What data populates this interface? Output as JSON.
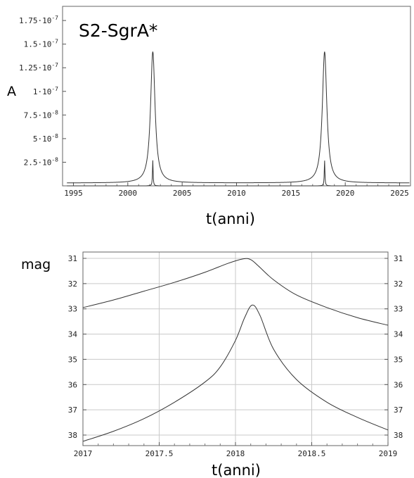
{
  "chart_data": [
    {
      "type": "line",
      "title": "S2-SgrA*",
      "xlabel": "t(anni)",
      "ylabel": "A",
      "xlim": [
        1994,
        2026
      ],
      "ylim": [
        0,
        1.9e-07
      ],
      "x_ticks": [
        1995,
        2000,
        2005,
        2010,
        2015,
        2020,
        2025
      ],
      "x_tick_labels": [
        "1995",
        "2000",
        "2005",
        "2010",
        "2015",
        "2020",
        "2025"
      ],
      "y_ticks": [
        2.5e-08,
        5e-08,
        7.5e-08,
        1e-07,
        1.25e-07,
        1.5e-07,
        1.75e-07
      ],
      "y_tick_labels": [
        {
          "m": "2.5",
          "e": "-8"
        },
        {
          "m": "5",
          "e": "-8"
        },
        {
          "m": "7.5",
          "e": "-8"
        },
        {
          "m": "1",
          "e": "-7"
        },
        {
          "m": "1.25",
          "e": "-7"
        },
        {
          "m": "1.5",
          "e": "-7"
        },
        {
          "m": "1.75",
          "e": "-7"
        }
      ],
      "grid": false,
      "series": [
        {
          "peaks": [
            2002.3,
            2018.1
          ],
          "peak_value": 1.42e-07,
          "baseline": 3e-09,
          "width": 0.25
        },
        {
          "peaks": [
            2002.3,
            2018.1
          ],
          "peak_value": 2.7e-08,
          "baseline": 0,
          "width": 0.035
        }
      ]
    },
    {
      "type": "line",
      "xlabel": "t(anni)",
      "ylabel": "mag",
      "xlim": [
        2017,
        2019
      ],
      "ylim": [
        31,
        38
      ],
      "y_inverted": true,
      "x_ticks": [
        2017,
        2017.5,
        2018,
        2018.5,
        2019
      ],
      "x_tick_labels": [
        "2017",
        "2017.5",
        "2018",
        "2018.5",
        "2019"
      ],
      "y_ticks": [
        31,
        32,
        33,
        34,
        35,
        36,
        37,
        38
      ],
      "y_tick_labels": [
        "31",
        "32",
        "33",
        "34",
        "35",
        "36",
        "37",
        "38"
      ],
      "grid": true,
      "series": [
        {
          "x": [
            2017.0,
            2017.2,
            2017.4,
            2017.6,
            2017.8,
            2017.95,
            2018.05,
            2018.1,
            2018.15,
            2018.25,
            2018.4,
            2018.6,
            2018.8,
            2019.0
          ],
          "values": [
            32.95,
            32.65,
            32.3,
            31.95,
            31.55,
            31.2,
            31.02,
            31.05,
            31.3,
            31.85,
            32.45,
            32.95,
            33.35,
            33.65
          ]
        },
        {
          "x": [
            2017.0,
            2017.2,
            2017.4,
            2017.6,
            2017.8,
            2017.9,
            2018.0,
            2018.06,
            2018.11,
            2018.16,
            2018.25,
            2018.4,
            2018.6,
            2018.8,
            2019.0
          ],
          "values": [
            38.25,
            37.85,
            37.35,
            36.7,
            35.9,
            35.3,
            34.25,
            33.35,
            32.85,
            33.25,
            34.6,
            35.8,
            36.7,
            37.3,
            37.8
          ]
        }
      ]
    }
  ]
}
